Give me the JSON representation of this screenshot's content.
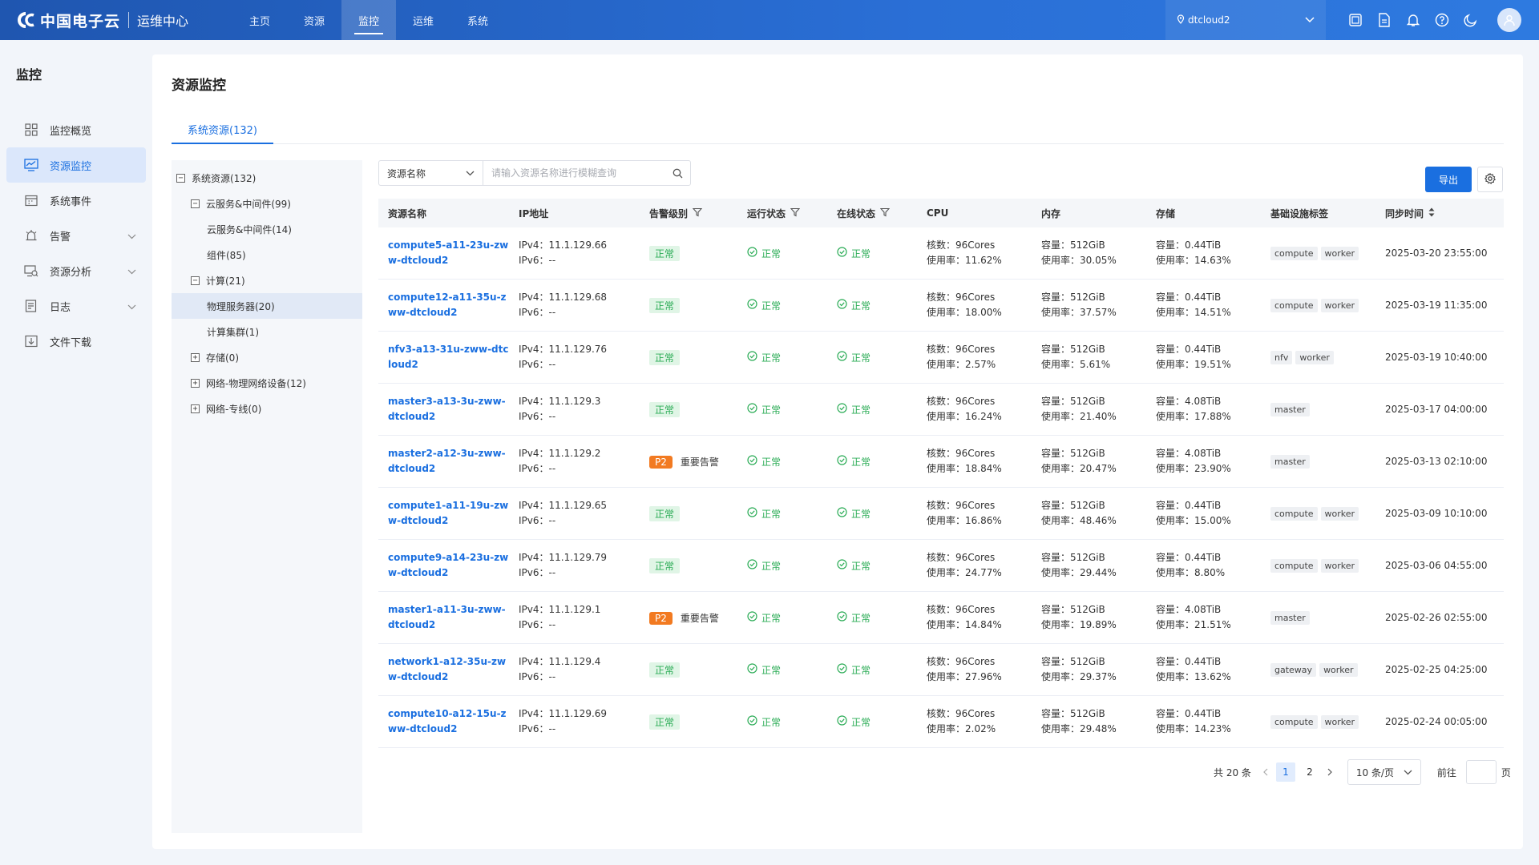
{
  "header": {
    "brand_name": "中国电子云",
    "brand_sub": "运维中心",
    "nav": [
      {
        "label": "主页"
      },
      {
        "label": "资源"
      },
      {
        "label": "监控"
      },
      {
        "label": "运维"
      },
      {
        "label": "系统"
      }
    ],
    "tenant": "dtcloud2"
  },
  "sidebar": {
    "title": "监控",
    "items": [
      {
        "label": "监控概览",
        "icon": "grid-icon"
      },
      {
        "label": "资源监控",
        "icon": "monitor-chart-icon"
      },
      {
        "label": "系统事件",
        "icon": "calendar-icon"
      },
      {
        "label": "告警",
        "icon": "alarm-icon"
      },
      {
        "label": "资源分析",
        "icon": "analysis-icon"
      },
      {
        "label": "日志",
        "icon": "log-icon"
      },
      {
        "label": "文件下载",
        "icon": "download-icon"
      }
    ]
  },
  "main": {
    "title": "资源监控",
    "tab": "系统资源(132)"
  },
  "tree": [
    {
      "label": "系统资源(132)",
      "level": 0,
      "toggle": "−"
    },
    {
      "label": "云服务&中间件(99)",
      "level": 1,
      "toggle": "−"
    },
    {
      "label": "云服务&中间件(14)",
      "level": 2,
      "toggle": ""
    },
    {
      "label": "组件(85)",
      "level": 2,
      "toggle": ""
    },
    {
      "label": "计算(21)",
      "level": 1,
      "toggle": "−"
    },
    {
      "label": "物理服务器(20)",
      "level": 2,
      "toggle": ""
    },
    {
      "label": "计算集群(1)",
      "level": 2,
      "toggle": ""
    },
    {
      "label": "存储(0)",
      "level": 1,
      "toggle": "+"
    },
    {
      "label": "网络-物理网络设备(12)",
      "level": 1,
      "toggle": "+"
    },
    {
      "label": "网络-专线(0)",
      "level": 1,
      "toggle": "+"
    }
  ],
  "toolbar": {
    "search_field": "资源名称",
    "search_placeholder": "请输入资源名称进行模糊查询",
    "export_label": "导出"
  },
  "table": {
    "headers": {
      "name": "资源名称",
      "ip": "IP地址",
      "alarm": "告警级别",
      "run": "运行状态",
      "online": "在线状态",
      "cpu": "CPU",
      "mem": "内存",
      "sto": "存储",
      "tag": "基础设施标签",
      "time": "同步时间"
    },
    "labels": {
      "ipv4": "IPv4：",
      "ipv6": "IPv6：",
      "cores": "核数：",
      "usage": "使用率：",
      "capacity": "容量：",
      "ok": "正常",
      "major_alarm": "重要告警"
    },
    "rows": [
      {
        "name": "compute5-a11-23u-zww-dtcloud2",
        "ipv4": "11.1.129.66",
        "ipv6": "--",
        "alarm": "正常",
        "run": "正常",
        "online": "正常",
        "cpu_cores": "96Cores",
        "cpu_usage": "11.62%",
        "mem_cap": "512GiB",
        "mem_usage": "30.05%",
        "sto_cap": "0.44TiB",
        "sto_usage": "14.63%",
        "tags": [
          "compute",
          "worker"
        ],
        "time": "2025-03-20 23:55:00"
      },
      {
        "name": "compute12-a11-35u-zww-dtcloud2",
        "ipv4": "11.1.129.68",
        "ipv6": "--",
        "alarm": "正常",
        "run": "正常",
        "online": "正常",
        "cpu_cores": "96Cores",
        "cpu_usage": "18.00%",
        "mem_cap": "512GiB",
        "mem_usage": "37.57%",
        "sto_cap": "0.44TiB",
        "sto_usage": "14.51%",
        "tags": [
          "compute",
          "worker"
        ],
        "time": "2025-03-19 11:35:00"
      },
      {
        "name": "nfv3-a13-31u-zww-dtcloud2",
        "ipv4": "11.1.129.76",
        "ipv6": "--",
        "alarm": "正常",
        "run": "正常",
        "online": "正常",
        "cpu_cores": "96Cores",
        "cpu_usage": "2.57%",
        "mem_cap": "512GiB",
        "mem_usage": "5.61%",
        "sto_cap": "0.44TiB",
        "sto_usage": "19.51%",
        "tags": [
          "nfv",
          "worker"
        ],
        "time": "2025-03-19 10:40:00"
      },
      {
        "name": "master3-a13-3u-zww-dtcloud2",
        "ipv4": "11.1.129.3",
        "ipv6": "--",
        "alarm": "正常",
        "run": "正常",
        "online": "正常",
        "cpu_cores": "96Cores",
        "cpu_usage": "16.24%",
        "mem_cap": "512GiB",
        "mem_usage": "21.40%",
        "sto_cap": "4.08TiB",
        "sto_usage": "17.88%",
        "tags": [
          "master"
        ],
        "time": "2025-03-17 04:00:00"
      },
      {
        "name": "master2-a12-3u-zww-dtcloud2",
        "ipv4": "11.1.129.2",
        "ipv6": "--",
        "alarm": "P2",
        "run": "正常",
        "online": "正常",
        "cpu_cores": "96Cores",
        "cpu_usage": "18.84%",
        "mem_cap": "512GiB",
        "mem_usage": "20.47%",
        "sto_cap": "4.08TiB",
        "sto_usage": "23.90%",
        "tags": [
          "master"
        ],
        "time": "2025-03-13 02:10:00"
      },
      {
        "name": "compute1-a11-19u-zww-dtcloud2",
        "ipv4": "11.1.129.65",
        "ipv6": "--",
        "alarm": "正常",
        "run": "正常",
        "online": "正常",
        "cpu_cores": "96Cores",
        "cpu_usage": "16.86%",
        "mem_cap": "512GiB",
        "mem_usage": "48.46%",
        "sto_cap": "0.44TiB",
        "sto_usage": "15.00%",
        "tags": [
          "compute",
          "worker"
        ],
        "time": "2025-03-09 10:10:00"
      },
      {
        "name": "compute9-a14-23u-zww-dtcloud2",
        "ipv4": "11.1.129.79",
        "ipv6": "--",
        "alarm": "正常",
        "run": "正常",
        "online": "正常",
        "cpu_cores": "96Cores",
        "cpu_usage": "24.77%",
        "mem_cap": "512GiB",
        "mem_usage": "29.44%",
        "sto_cap": "0.44TiB",
        "sto_usage": "8.80%",
        "tags": [
          "compute",
          "worker"
        ],
        "time": "2025-03-06 04:55:00"
      },
      {
        "name": "master1-a11-3u-zww-dtcloud2",
        "ipv4": "11.1.129.1",
        "ipv6": "--",
        "alarm": "P2",
        "run": "正常",
        "online": "正常",
        "cpu_cores": "96Cores",
        "cpu_usage": "14.84%",
        "mem_cap": "512GiB",
        "mem_usage": "19.89%",
        "sto_cap": "4.08TiB",
        "sto_usage": "21.51%",
        "tags": [
          "master"
        ],
        "time": "2025-02-26 02:55:00"
      },
      {
        "name": "network1-a12-35u-zww-dtcloud2",
        "ipv4": "11.1.129.4",
        "ipv6": "--",
        "alarm": "正常",
        "run": "正常",
        "online": "正常",
        "cpu_cores": "96Cores",
        "cpu_usage": "27.96%",
        "mem_cap": "512GiB",
        "mem_usage": "29.37%",
        "sto_cap": "0.44TiB",
        "sto_usage": "13.62%",
        "tags": [
          "gateway",
          "worker"
        ],
        "time": "2025-02-25 04:25:00"
      },
      {
        "name": "compute10-a12-15u-zww-dtcloud2",
        "ipv4": "11.1.129.69",
        "ipv6": "--",
        "alarm": "正常",
        "run": "正常",
        "online": "正常",
        "cpu_cores": "96Cores",
        "cpu_usage": "2.02%",
        "mem_cap": "512GiB",
        "mem_usage": "29.48%",
        "sto_cap": "0.44TiB",
        "sto_usage": "14.23%",
        "tags": [
          "compute",
          "worker"
        ],
        "time": "2025-02-24 00:05:00"
      }
    ]
  },
  "pagination": {
    "total": "共 20 条",
    "pages": [
      "1",
      "2"
    ],
    "current": "1",
    "page_size": "10 条/页",
    "goto_label": "前往",
    "page_unit": "页"
  },
  "colors": {
    "primary": "#1a6fe0",
    "ok": "#2bac56",
    "p2": "#f27a21"
  }
}
